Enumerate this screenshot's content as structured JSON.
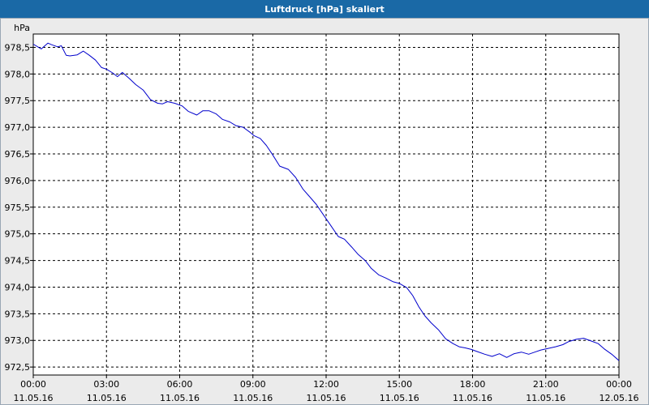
{
  "window": {
    "title": "Luftdruck [hPa] skaliert"
  },
  "chart_data": {
    "type": "line",
    "title": "Luftdruck [hPa] skaliert",
    "ylabel": "hPa",
    "xlabel": "",
    "grid": true,
    "ylim": [
      972.35,
      978.75
    ],
    "yticks": [
      {
        "value": 978.5,
        "label": "978,5"
      },
      {
        "value": 978.0,
        "label": "978,0"
      },
      {
        "value": 977.5,
        "label": "977,5"
      },
      {
        "value": 977.0,
        "label": "977,0"
      },
      {
        "value": 976.5,
        "label": "976,5"
      },
      {
        "value": 976.0,
        "label": "976,0"
      },
      {
        "value": 975.5,
        "label": "975,5"
      },
      {
        "value": 975.0,
        "label": "975,0"
      },
      {
        "value": 974.5,
        "label": "974,5"
      },
      {
        "value": 974.0,
        "label": "974,0"
      },
      {
        "value": 973.5,
        "label": "973,5"
      },
      {
        "value": 973.0,
        "label": "973,0"
      },
      {
        "value": 972.5,
        "label": "972,5"
      }
    ],
    "xrange_hours": [
      0,
      24
    ],
    "xticks": [
      {
        "hour": 0,
        "time": "00:00",
        "date": "11.05.16"
      },
      {
        "hour": 3,
        "time": "03:00",
        "date": "11.05.16"
      },
      {
        "hour": 6,
        "time": "06:00",
        "date": "11.05.16"
      },
      {
        "hour": 9,
        "time": "09:00",
        "date": "11.05.16"
      },
      {
        "hour": 12,
        "time": "12:00",
        "date": "11.05.16"
      },
      {
        "hour": 15,
        "time": "15:00",
        "date": "11.05.16"
      },
      {
        "hour": 18,
        "time": "18:00",
        "date": "11.05.16"
      },
      {
        "hour": 21,
        "time": "21:00",
        "date": "11.05.16"
      },
      {
        "hour": 24,
        "time": "00:00",
        "date": "12.05.16"
      }
    ],
    "series": [
      {
        "color": "#0000cc",
        "x": [
          0.0,
          0.33,
          0.6,
          0.75,
          1.0,
          1.15,
          1.35,
          1.5,
          1.8,
          2.05,
          2.3,
          2.55,
          2.8,
          3.0,
          3.25,
          3.45,
          3.65,
          3.95,
          4.2,
          4.5,
          4.8,
          5.1,
          5.3,
          5.5,
          5.8,
          6.1,
          6.35,
          6.7,
          6.95,
          7.2,
          7.5,
          7.75,
          8.05,
          8.3,
          8.6,
          8.9,
          9.05,
          9.3,
          9.55,
          9.8,
          10.1,
          10.45,
          10.75,
          11.05,
          11.3,
          11.6,
          11.9,
          12.2,
          12.5,
          12.75,
          13.05,
          13.3,
          13.6,
          13.85,
          14.15,
          14.45,
          14.75,
          15.0,
          15.3,
          15.55,
          15.8,
          16.05,
          16.3,
          16.6,
          16.9,
          17.2,
          17.45,
          17.7,
          17.95,
          18.2,
          18.5,
          18.8,
          19.1,
          19.4,
          19.7,
          20.0,
          20.3,
          20.55,
          20.8,
          21.1,
          21.4,
          21.7,
          21.95,
          22.25,
          22.55,
          22.85,
          23.15,
          23.4,
          23.7,
          24.0
        ],
        "y": [
          978.56,
          978.47,
          978.58,
          978.55,
          978.51,
          978.53,
          978.35,
          978.34,
          978.36,
          978.43,
          978.35,
          978.26,
          978.12,
          978.09,
          978.02,
          977.95,
          978.03,
          977.91,
          977.8,
          977.7,
          977.52,
          977.45,
          977.44,
          977.48,
          977.45,
          977.4,
          977.3,
          977.23,
          977.31,
          977.31,
          977.25,
          977.15,
          977.1,
          977.03,
          977.0,
          976.9,
          976.84,
          976.79,
          976.66,
          976.49,
          976.27,
          976.21,
          976.06,
          975.84,
          975.71,
          975.55,
          975.35,
          975.15,
          974.95,
          974.9,
          974.75,
          974.62,
          974.5,
          974.35,
          974.23,
          974.17,
          974.1,
          974.07,
          973.99,
          973.84,
          973.63,
          973.46,
          973.33,
          973.2,
          973.03,
          972.94,
          972.88,
          972.86,
          972.83,
          972.79,
          972.74,
          972.7,
          972.75,
          972.68,
          972.75,
          972.78,
          972.74,
          972.78,
          972.82,
          972.85,
          972.88,
          972.92,
          972.98,
          973.02,
          973.04,
          972.99,
          972.94,
          972.84,
          972.74,
          972.62
        ]
      }
    ]
  }
}
